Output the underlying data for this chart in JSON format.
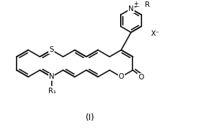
{
  "background_color": "#ffffff",
  "line_color": "#1a1a1a",
  "line_width": 1.3,
  "label_S": "S",
  "label_N_bottom": "N",
  "label_N_top": "N",
  "label_O_lactone": "O",
  "label_O_carbonyl": "O",
  "label_R1": "R₁",
  "label_R_top": "R",
  "label_X": "X⁻",
  "label_roman": "(Ⅰ)",
  "plus_sign": "+",
  "font_size_atoms": 7.5,
  "font_size_roman": 9
}
